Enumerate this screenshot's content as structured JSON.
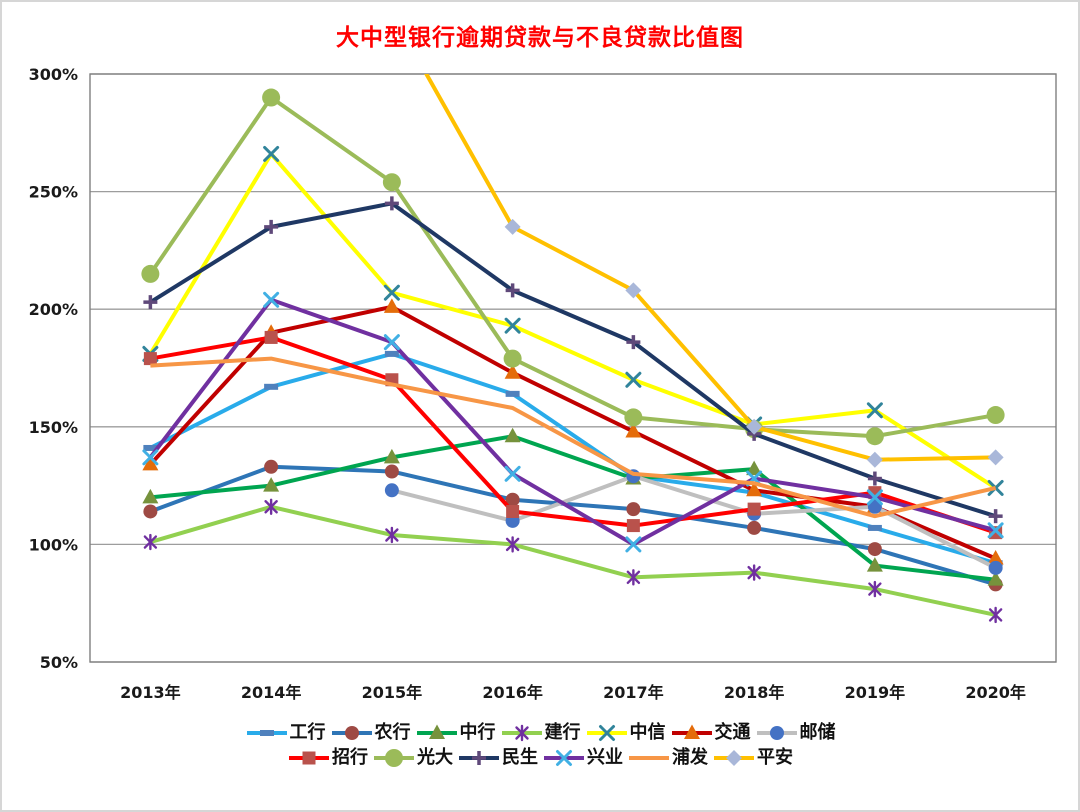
{
  "chart_data": {
    "type": "line",
    "title": "大中型银行逾期贷款与不良贷款比值图",
    "title_color": "#ff0000",
    "categories": [
      "2013年",
      "2014年",
      "2015年",
      "2016年",
      "2017年",
      "2018年",
      "2019年",
      "2020年"
    ],
    "y_axis": {
      "min": 50,
      "max": 300,
      "step": 50,
      "format": "percent"
    },
    "y_ticks": [
      "50%",
      "100%",
      "150%",
      "200%",
      "250%",
      "300%"
    ],
    "grid": true,
    "legend_position": "bottom",
    "legend_rows": [
      7,
      6
    ],
    "series": [
      {
        "name": "工行",
        "color": "#29abea",
        "marker": "dash",
        "marker_color": "#4f81bd",
        "values": [
          141,
          167,
          181,
          164,
          129,
          122,
          107,
          92
        ]
      },
      {
        "name": "农行",
        "color": "#2e75b6",
        "marker": "circle",
        "marker_color": "#9e4a44",
        "values": [
          114,
          133,
          131,
          119,
          115,
          107,
          98,
          83
        ]
      },
      {
        "name": "中行",
        "color": "#00a550",
        "marker": "triangle",
        "marker_color": "#76923c",
        "values": [
          120,
          125,
          137,
          146,
          128,
          132,
          91,
          85
        ]
      },
      {
        "name": "建行",
        "color": "#92d050",
        "marker": "asterisk",
        "marker_color": "#7030a0",
        "values": [
          101,
          116,
          104,
          100,
          86,
          88,
          81,
          70
        ]
      },
      {
        "name": "中信",
        "color": "#ffff00",
        "marker": "x",
        "marker_color": "#31849b",
        "values": [
          181,
          266,
          207,
          193,
          170,
          151,
          157,
          124
        ]
      },
      {
        "name": "交通",
        "color": "#c00000",
        "marker": "triangle",
        "marker_color": "#e46c0a",
        "values": [
          134,
          190,
          201,
          173,
          148,
          123,
          116,
          94
        ]
      },
      {
        "name": "邮储",
        "color": "#bfbfbf",
        "marker": "circle",
        "marker_color": "#4472c4",
        "values": [
          null,
          null,
          123,
          110,
          129,
          113,
          116,
          90
        ]
      },
      {
        "name": "招行",
        "color": "#ff0000",
        "marker": "square",
        "marker_color": "#b9524c",
        "values": [
          179,
          188,
          170,
          114,
          108,
          115,
          122,
          105
        ]
      },
      {
        "name": "光大",
        "color": "#9bbb59",
        "marker": "circle",
        "marker_color": "#9bbb59",
        "values": [
          215,
          290,
          254,
          179,
          154,
          149,
          146,
          155
        ]
      },
      {
        "name": "民生",
        "color": "#1f3864",
        "marker": "plus",
        "marker_color": "#5f497a",
        "values": [
          203,
          235,
          245,
          208,
          186,
          147,
          128,
          112
        ]
      },
      {
        "name": "兴业",
        "color": "#7030a0",
        "marker": "x",
        "marker_color": "#41b0e4",
        "values": [
          137,
          204,
          186,
          130,
          100,
          128,
          120,
          106
        ]
      },
      {
        "name": "浦发",
        "color": "#f79646",
        "marker": "none",
        "marker_color": "#f79646",
        "values": [
          176,
          179,
          168,
          158,
          130,
          126,
          112,
          124
        ]
      },
      {
        "name": "平安",
        "color": "#ffc000",
        "marker": "diamond",
        "marker_color": "#a9b7d9",
        "values": [
          null,
          null,
          326,
          235,
          208,
          150,
          136,
          137
        ]
      }
    ]
  }
}
